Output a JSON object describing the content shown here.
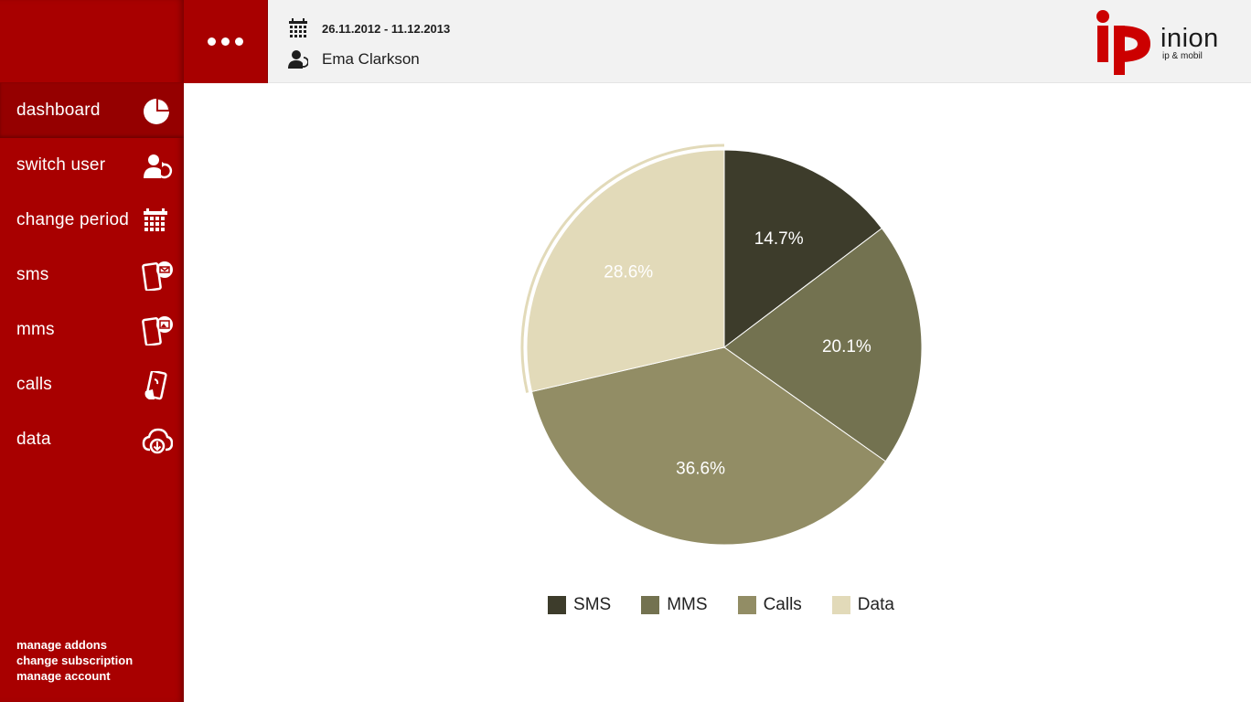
{
  "nav": {
    "items": [
      {
        "label": "dashboard",
        "icon": "pie-chart-icon"
      },
      {
        "label": "switch  user",
        "icon": "switch-user-icon"
      },
      {
        "label": "change  period",
        "icon": "calendar-icon"
      },
      {
        "label": "sms",
        "icon": "sms-phone-icon"
      },
      {
        "label": "mms",
        "icon": "mms-phone-icon"
      },
      {
        "label": "calls",
        "icon": "phone-call-icon"
      },
      {
        "label": "data",
        "icon": "cloud-download-icon"
      }
    ],
    "active": "dashboard"
  },
  "footer_links": [
    "manage addons",
    "change subscription",
    "manage account"
  ],
  "header": {
    "period": "26.11.2012 - 11.12.2013",
    "period_icon": "calendar-icon",
    "user": "Ema Clarkson",
    "user_icon": "user-icon"
  },
  "logo": {
    "mark": "ip",
    "brand": "inion",
    "tagline": "ip & mobil"
  },
  "colors": {
    "brand_red": "#a80000",
    "header_bg": "#f2f2f2",
    "sms": "#3d3c2b",
    "mms": "#737250",
    "calls": "#928d65",
    "data": "#e2dab9"
  },
  "chart_data": {
    "type": "pie",
    "categories": [
      "SMS",
      "MMS",
      "Calls",
      "Data"
    ],
    "values": [
      14.7,
      20.1,
      36.6,
      28.6
    ],
    "labels": [
      "14.7%",
      "20.1%",
      "36.6%",
      "28.6%"
    ],
    "colors": [
      "#3d3c2b",
      "#737250",
      "#928d65",
      "#e2dab9"
    ],
    "legend_position": "bottom",
    "selected": "Data"
  }
}
